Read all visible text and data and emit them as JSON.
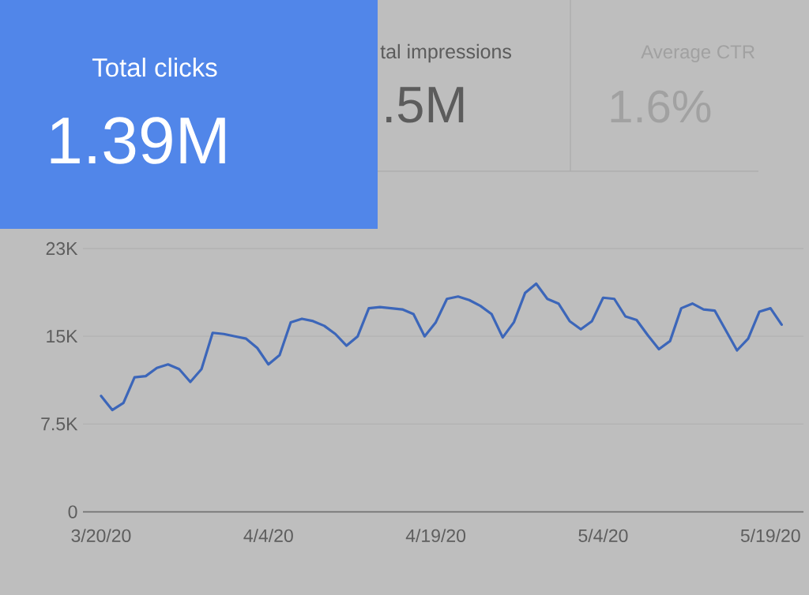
{
  "chart_data": {
    "type": "line",
    "title": "Total clicks",
    "subtitle": "1.39M",
    "annotations": [
      "tal impressions",
      ".5M",
      "Average CTR",
      "1.6%"
    ],
    "x": [
      "2020-03-20",
      "2020-03-21",
      "2020-03-22",
      "2020-03-23",
      "2020-03-24",
      "2020-03-25",
      "2020-03-26",
      "2020-03-27",
      "2020-03-28",
      "2020-03-29",
      "2020-03-30",
      "2020-03-31",
      "2020-04-01",
      "2020-04-02",
      "2020-04-03",
      "2020-04-04",
      "2020-04-05",
      "2020-04-06",
      "2020-04-07",
      "2020-04-08",
      "2020-04-09",
      "2020-04-10",
      "2020-04-11",
      "2020-04-12",
      "2020-04-13",
      "2020-04-14",
      "2020-04-15",
      "2020-04-16",
      "2020-04-17",
      "2020-04-18",
      "2020-04-19",
      "2020-04-20",
      "2020-04-21",
      "2020-04-22",
      "2020-04-23",
      "2020-04-24",
      "2020-04-25",
      "2020-04-26",
      "2020-04-27",
      "2020-04-28",
      "2020-04-29",
      "2020-04-30",
      "2020-05-01",
      "2020-05-02",
      "2020-05-03",
      "2020-05-04",
      "2020-05-05",
      "2020-05-06",
      "2020-05-07",
      "2020-05-08",
      "2020-05-09",
      "2020-05-10",
      "2020-05-11",
      "2020-05-12",
      "2020-05-13",
      "2020-05-14",
      "2020-05-15",
      "2020-05-16",
      "2020-05-17",
      "2020-05-18",
      "2020-05-19",
      "2020-05-20"
    ],
    "series": [
      {
        "color": "#3c66b9",
        "values": [
          9900,
          8700,
          9300,
          11500,
          11600,
          12300,
          12600,
          12200,
          11100,
          12200,
          15300,
          15200,
          15000,
          14800,
          14000,
          12600,
          13400,
          16200,
          16500,
          16300,
          15900,
          15200,
          14200,
          15000,
          17400,
          17500,
          17400,
          17300,
          16900,
          15000,
          16200,
          18200,
          18400,
          18100,
          17600,
          16900,
          14900,
          16200,
          18700,
          19500,
          18200,
          17800,
          16300,
          15600,
          16300,
          18300,
          18200,
          16700,
          16400,
          15100,
          13900,
          14600,
          17400,
          17800,
          17300,
          17200,
          15500,
          13800,
          14800,
          17100,
          17400,
          16000
        ]
      }
    ],
    "xlim": [
      "2020-03-18T09:00",
      "2020-05-21T23:00"
    ],
    "ylim": [
      0,
      22500
    ],
    "xticks": [
      {
        "value": "2020-03-20",
        "label": "3/20/20"
      },
      {
        "value": "2020-04-04",
        "label": "4/4/20"
      },
      {
        "value": "2020-04-19",
        "label": "4/19/20"
      },
      {
        "value": "2020-05-04",
        "label": "5/4/20"
      },
      {
        "value": "2020-05-19",
        "label": "5/19/20"
      }
    ],
    "yticks": [
      0,
      {
        "value": 7500,
        "label": "7.5K"
      },
      {
        "value": 15000,
        "label": "15K"
      },
      {
        "value": 22500,
        "label": "23K"
      }
    ],
    "grid": "y"
  }
}
